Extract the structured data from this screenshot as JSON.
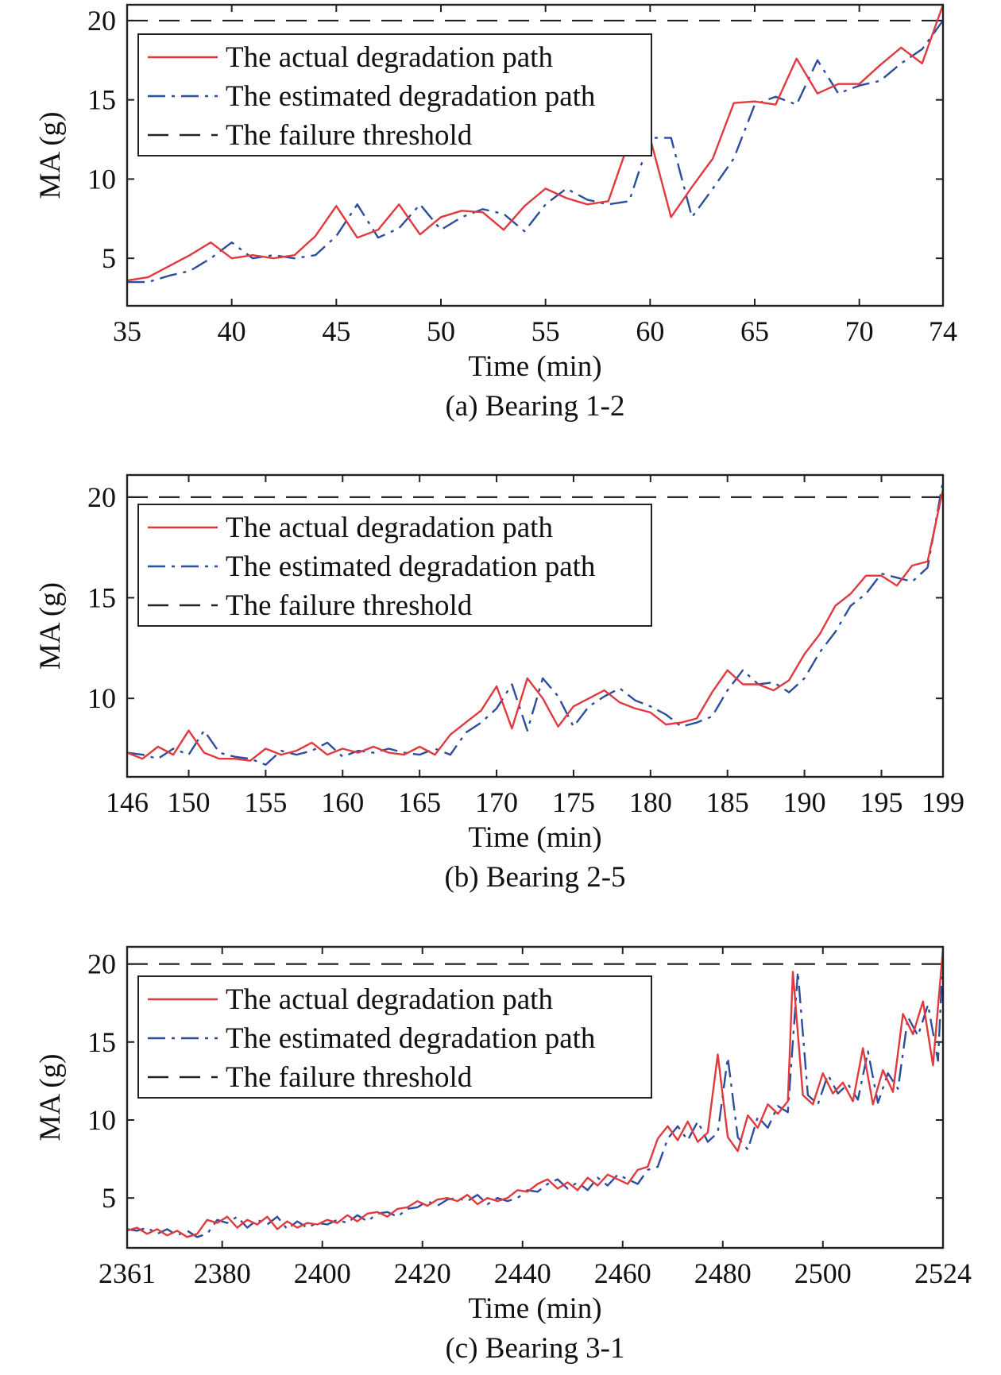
{
  "legend_labels": {
    "actual": "The actual degradation path",
    "estimated": "The estimated degradation path",
    "threshold": "The failure threshold"
  },
  "colors": {
    "actual": "#e03a3e",
    "estimated": "#2c4d9e",
    "threshold": "#222222"
  },
  "chart_data": [
    {
      "type": "line",
      "caption": "(a) Bearing 1-2",
      "xlabel": "Time (min)",
      "ylabel": "MA (g)",
      "xlim": [
        35,
        74
      ],
      "ylim": [
        2,
        21
      ],
      "xticks": [
        35,
        40,
        45,
        50,
        55,
        60,
        65,
        70,
        74
      ],
      "yticks": [
        5,
        10,
        15,
        20
      ],
      "threshold": 20,
      "legend_position": "top-left",
      "series": [
        {
          "name": "The actual degradation path",
          "x": [
            35,
            36,
            37,
            38,
            39,
            40,
            41,
            42,
            43,
            44,
            45,
            46,
            47,
            48,
            49,
            50,
            51,
            52,
            53,
            54,
            55,
            56,
            57,
            58,
            59,
            60,
            61,
            62,
            63,
            64,
            65,
            66,
            67,
            68,
            69,
            70,
            71,
            72,
            73,
            74
          ],
          "y": [
            3.6,
            3.8,
            4.5,
            5.2,
            6.0,
            5.0,
            5.2,
            5.0,
            5.2,
            6.4,
            8.3,
            6.3,
            6.8,
            8.4,
            6.5,
            7.6,
            8.0,
            7.9,
            6.8,
            8.3,
            9.4,
            8.8,
            8.4,
            8.6,
            12.4,
            12.6,
            7.6,
            9.5,
            11.3,
            14.8,
            14.9,
            14.7,
            17.6,
            15.4,
            16.0,
            16.0,
            17.2,
            18.3,
            17.3,
            21.0
          ]
        },
        {
          "name": "The estimated degradation path",
          "x": [
            35,
            36,
            37,
            38,
            39,
            40,
            41,
            42,
            43,
            44,
            45,
            46,
            47,
            48,
            49,
            50,
            51,
            52,
            53,
            54,
            55,
            56,
            57,
            58,
            59,
            60,
            61,
            62,
            63,
            64,
            65,
            66,
            67,
            68,
            69,
            70,
            71,
            72,
            73,
            74
          ],
          "y": [
            3.5,
            3.5,
            3.9,
            4.2,
            5.0,
            6.0,
            5.0,
            5.2,
            5.0,
            5.2,
            6.4,
            8.4,
            6.3,
            6.9,
            8.4,
            6.8,
            7.6,
            8.1,
            7.8,
            6.7,
            8.4,
            9.4,
            8.7,
            8.4,
            8.6,
            12.6,
            12.6,
            7.6,
            9.4,
            11.3,
            14.7,
            15.2,
            14.7,
            17.5,
            15.4,
            15.9,
            16.2,
            17.3,
            18.2,
            20.0
          ]
        }
      ]
    },
    {
      "type": "line",
      "caption": "(b) Bearing 2-5",
      "xlabel": "Time (min)",
      "ylabel": "MA (g)",
      "xlim": [
        146,
        199
      ],
      "ylim": [
        6.1,
        21.1
      ],
      "xticks": [
        146,
        150,
        155,
        160,
        165,
        170,
        175,
        180,
        185,
        190,
        195,
        199
      ],
      "yticks": [
        10,
        15,
        20
      ],
      "threshold": 20,
      "legend_position": "top-left",
      "series": [
        {
          "name": "The actual degradation path",
          "x": [
            146,
            147,
            148,
            149,
            150,
            151,
            152,
            153,
            154,
            155,
            156,
            157,
            158,
            159,
            160,
            161,
            162,
            163,
            164,
            165,
            166,
            167,
            168,
            169,
            170,
            171,
            172,
            173,
            174,
            175,
            176,
            177,
            178,
            179,
            180,
            181,
            182,
            183,
            184,
            185,
            186,
            187,
            188,
            189,
            190,
            191,
            192,
            193,
            194,
            195,
            196,
            197,
            198,
            199
          ],
          "y": [
            7.3,
            7.0,
            7.6,
            7.2,
            8.4,
            7.3,
            7.0,
            7.0,
            6.9,
            7.5,
            7.2,
            7.4,
            7.8,
            7.2,
            7.5,
            7.3,
            7.6,
            7.3,
            7.2,
            7.6,
            7.2,
            8.2,
            8.8,
            9.4,
            10.6,
            8.5,
            11.0,
            10.0,
            8.6,
            9.6,
            10.0,
            10.4,
            9.8,
            9.5,
            9.3,
            8.7,
            8.8,
            9.0,
            10.3,
            11.4,
            10.7,
            10.7,
            10.4,
            10.9,
            12.2,
            13.2,
            14.6,
            15.2,
            16.1,
            16.1,
            15.6,
            16.6,
            16.8,
            20.4
          ]
        },
        {
          "name": "The estimated degradation path",
          "x": [
            146,
            147,
            148,
            149,
            150,
            151,
            152,
            153,
            154,
            155,
            156,
            157,
            158,
            159,
            160,
            161,
            162,
            163,
            164,
            165,
            166,
            167,
            168,
            169,
            170,
            171,
            172,
            173,
            174,
            175,
            176,
            177,
            178,
            179,
            180,
            181,
            182,
            183,
            184,
            185,
            186,
            187,
            188,
            189,
            190,
            191,
            192,
            193,
            194,
            195,
            196,
            197,
            198,
            199
          ],
          "y": [
            7.3,
            7.2,
            7.0,
            7.5,
            7.2,
            8.4,
            7.3,
            7.1,
            7.0,
            6.7,
            7.4,
            7.2,
            7.4,
            7.8,
            7.1,
            7.4,
            7.3,
            7.5,
            7.3,
            7.2,
            7.5,
            7.2,
            8.3,
            8.8,
            9.5,
            10.7,
            8.4,
            11.0,
            10.1,
            8.6,
            9.6,
            10.1,
            10.5,
            9.9,
            9.6,
            9.2,
            8.6,
            8.8,
            9.1,
            10.4,
            11.4,
            10.7,
            10.8,
            10.3,
            11.0,
            12.3,
            13.3,
            14.6,
            15.2,
            16.2,
            16.0,
            15.8,
            16.5,
            20.8
          ]
        }
      ]
    },
    {
      "type": "line",
      "caption": "(c) Bearing 3-1",
      "xlabel": "Time (min)",
      "ylabel": "MA (g)",
      "xlim": [
        2361,
        2524
      ],
      "ylim": [
        1.8,
        21.1
      ],
      "xticks": [
        2361,
        2380,
        2400,
        2420,
        2440,
        2460,
        2480,
        2500,
        2524
      ],
      "yticks": [
        5,
        10,
        15,
        20
      ],
      "threshold": 20,
      "legend_position": "top-left",
      "series": [
        {
          "name": "The actual degradation path",
          "x": [
            2361,
            2363,
            2365,
            2367,
            2369,
            2371,
            2373,
            2375,
            2377,
            2379,
            2381,
            2383,
            2385,
            2387,
            2389,
            2391,
            2393,
            2395,
            2397,
            2399,
            2401,
            2403,
            2405,
            2407,
            2409,
            2411,
            2413,
            2415,
            2417,
            2419,
            2421,
            2423,
            2425,
            2427,
            2429,
            2431,
            2433,
            2435,
            2437,
            2439,
            2441,
            2443,
            2445,
            2447,
            2449,
            2451,
            2453,
            2455,
            2457,
            2459,
            2461,
            2463,
            2465,
            2467,
            2469,
            2471,
            2473,
            2475,
            2477,
            2479,
            2481,
            2483,
            2485,
            2487,
            2489,
            2491,
            2493,
            2494,
            2496,
            2498,
            2500,
            2502,
            2504,
            2506,
            2508,
            2510,
            2512,
            2514,
            2516,
            2518,
            2520,
            2522,
            2524
          ],
          "y": [
            2.9,
            3.1,
            2.7,
            3.0,
            2.6,
            2.9,
            2.5,
            2.7,
            3.6,
            3.4,
            3.8,
            3.1,
            3.6,
            3.3,
            3.8,
            3.0,
            3.5,
            3.1,
            3.4,
            3.3,
            3.6,
            3.4,
            3.9,
            3.5,
            4.0,
            4.1,
            3.8,
            4.3,
            4.4,
            4.8,
            4.5,
            4.9,
            5.0,
            4.8,
            5.2,
            4.6,
            5.0,
            4.8,
            5.0,
            5.5,
            5.4,
            5.9,
            6.2,
            5.6,
            6.0,
            5.5,
            6.3,
            5.8,
            6.5,
            6.2,
            5.9,
            6.8,
            7.0,
            8.8,
            9.6,
            8.7,
            9.9,
            8.6,
            9.2,
            14.2,
            8.9,
            8.0,
            10.3,
            9.5,
            11.0,
            10.4,
            11.2,
            19.5,
            11.6,
            11.0,
            13.0,
            11.7,
            12.4,
            11.2,
            14.6,
            11.0,
            13.2,
            11.8,
            16.8,
            15.5,
            17.6,
            13.5,
            21.0
          ]
        },
        {
          "name": "The estimated degradation path",
          "x": [
            2361,
            2363,
            2365,
            2367,
            2369,
            2371,
            2373,
            2375,
            2377,
            2379,
            2381,
            2383,
            2385,
            2387,
            2389,
            2391,
            2393,
            2395,
            2397,
            2399,
            2401,
            2403,
            2405,
            2407,
            2409,
            2411,
            2413,
            2415,
            2417,
            2419,
            2421,
            2423,
            2425,
            2427,
            2429,
            2431,
            2433,
            2435,
            2437,
            2439,
            2441,
            2443,
            2445,
            2447,
            2449,
            2451,
            2453,
            2455,
            2457,
            2459,
            2461,
            2463,
            2465,
            2467,
            2469,
            2471,
            2473,
            2475,
            2477,
            2479,
            2481,
            2483,
            2485,
            2487,
            2489,
            2491,
            2493,
            2495,
            2497,
            2499,
            2501,
            2503,
            2505,
            2507,
            2509,
            2511,
            2513,
            2515,
            2517,
            2519,
            2521,
            2523,
            2524
          ],
          "y": [
            3.0,
            2.9,
            3.1,
            2.7,
            3.0,
            2.6,
            2.9,
            2.5,
            2.7,
            3.6,
            3.4,
            3.8,
            3.1,
            3.6,
            3.3,
            3.8,
            3.0,
            3.5,
            3.1,
            3.4,
            3.3,
            3.6,
            3.4,
            3.9,
            3.5,
            4.0,
            4.1,
            3.8,
            4.3,
            4.4,
            4.8,
            4.5,
            4.9,
            5.0,
            4.8,
            5.2,
            4.6,
            5.0,
            4.8,
            5.0,
            5.5,
            5.4,
            5.9,
            6.2,
            5.6,
            6.0,
            5.5,
            6.3,
            5.8,
            6.5,
            6.2,
            5.9,
            6.8,
            7.0,
            8.8,
            9.6,
            8.7,
            9.9,
            8.6,
            9.2,
            14.0,
            8.9,
            8.1,
            10.2,
            9.5,
            10.9,
            10.5,
            19.5,
            11.6,
            11.0,
            12.9,
            11.7,
            12.3,
            11.3,
            14.4,
            11.1,
            13.0,
            12.0,
            16.6,
            15.4,
            17.4,
            13.8,
            20.6
          ]
        }
      ]
    }
  ]
}
